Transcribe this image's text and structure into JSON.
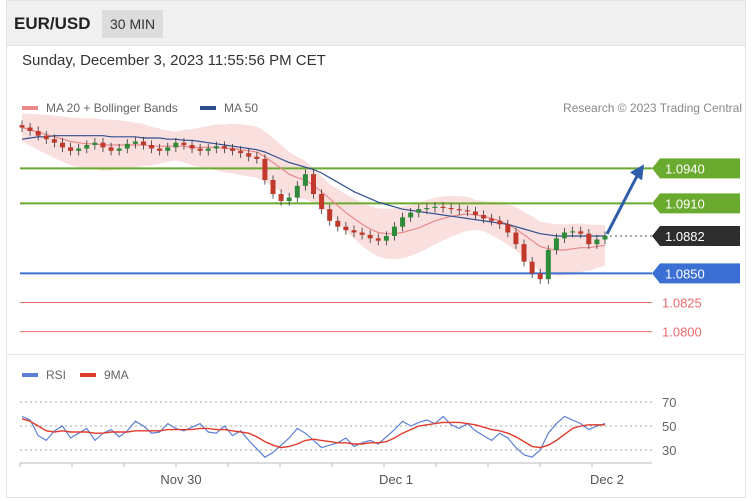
{
  "header": {
    "pair": "EUR/USD",
    "timeframe": "30 MIN"
  },
  "timestamp": "Sunday, December 3, 2023 11:55:56 PM CET",
  "legend": [
    {
      "label": "MA 20 + Bollinger Bands",
      "color": "#e88a8a"
    },
    {
      "label": "MA 50",
      "color": "#2f4f8f"
    }
  ],
  "credit": "Research © 2023 Trading Central",
  "rsi_legend": [
    {
      "label": "RSI",
      "color": "#5b7fd6"
    },
    {
      "label": "9MA",
      "color": "#e03c2c"
    }
  ],
  "colors": {
    "resistance": "#6aaa2e",
    "support": "#3b6fd4",
    "support_red": "#e86b6b",
    "price_tag": "#2d2d2d",
    "arrow": "#2f5fa8"
  },
  "chart_data": [
    {
      "type": "line",
      "title": "",
      "ylim": [
        1.078,
        1.099
      ],
      "x_ticks": [
        "Nov 30",
        "Dec 1",
        "Dec 2"
      ],
      "current_price": 1.0882,
      "levels": [
        {
          "value": 1.094,
          "label": "1.0940",
          "kind": "resistance"
        },
        {
          "value": 1.091,
          "label": "1.0910",
          "kind": "resistance"
        },
        {
          "value": 1.085,
          "label": "1.0850",
          "kind": "support"
        },
        {
          "value": 1.0825,
          "label": "1.0825",
          "kind": "support_red"
        },
        {
          "value": 1.08,
          "label": "1.0800",
          "kind": "support_red"
        }
      ],
      "series": [
        {
          "name": "Price",
          "values": [
            1.0975,
            1.0972,
            1.0968,
            1.0965,
            1.0962,
            1.0958,
            1.0955,
            1.0957,
            1.096,
            1.0962,
            1.0958,
            1.0955,
            1.0957,
            1.0961,
            1.0963,
            1.096,
            1.0957,
            1.0955,
            1.0958,
            1.0962,
            1.096,
            1.0957,
            1.0955,
            1.0957,
            1.0959,
            1.0957,
            1.0955,
            1.0953,
            1.095,
            1.0948,
            1.093,
            1.0918,
            1.0912,
            1.0915,
            1.0925,
            1.0935,
            1.0918,
            1.0905,
            1.0895,
            1.089,
            1.0887,
            1.0885,
            1.0883,
            1.088,
            1.0878,
            1.0882,
            1.089,
            1.0898,
            1.0902,
            1.0905,
            1.0906,
            1.0907,
            1.0906,
            1.0905,
            1.0904,
            1.0903,
            1.09,
            1.0897,
            1.0895,
            1.0892,
            1.0885,
            1.0875,
            1.086,
            1.085,
            1.0845,
            1.087,
            1.088,
            1.0885,
            1.0886,
            1.0884,
            1.0875,
            1.0879,
            1.0882
          ]
        },
        {
          "name": "MA 20",
          "values": [
            1.0975,
            1.0973,
            1.0971,
            1.0969,
            1.0967,
            1.0965,
            1.0963,
            1.0962,
            1.0961,
            1.0961,
            1.096,
            1.096,
            1.096,
            1.096,
            1.096,
            1.096,
            1.0959,
            1.0959,
            1.0959,
            1.0959,
            1.0959,
            1.0958,
            1.0958,
            1.0958,
            1.0958,
            1.0957,
            1.0957,
            1.0956,
            1.0955,
            1.0954,
            1.095,
            1.0945,
            1.094,
            1.0935,
            1.0932,
            1.093,
            1.0925,
            1.092,
            1.0914,
            1.0908,
            1.0902,
            1.0897,
            1.0892,
            1.0888,
            1.0885,
            1.0884,
            1.0884,
            1.0885,
            1.0887,
            1.0889,
            1.0892,
            1.0895,
            1.0897,
            1.0899,
            1.09,
            1.0901,
            1.09,
            1.0899,
            1.0897,
            1.0895,
            1.0892,
            1.0888,
            1.0883,
            1.0878,
            1.0873,
            1.0871,
            1.087,
            1.087,
            1.0871,
            1.0872,
            1.0872,
            1.0873,
            1.0874
          ]
        },
        {
          "name": "MA 50",
          "values": [
            1.0965,
            1.0966,
            1.0967,
            1.0967,
            1.0968,
            1.0968,
            1.0968,
            1.0968,
            1.0968,
            1.0968,
            1.0968,
            1.0967,
            1.0967,
            1.0967,
            1.0967,
            1.0966,
            1.0966,
            1.0966,
            1.0965,
            1.0965,
            1.0964,
            1.0964,
            1.0963,
            1.0962,
            1.0961,
            1.096,
            1.0959,
            1.0958,
            1.0957,
            1.0956,
            1.0954,
            1.0951,
            1.0948,
            1.0945,
            1.0943,
            1.0941,
            1.0939,
            1.0936,
            1.0932,
            1.0928,
            1.0924,
            1.092,
            1.0917,
            1.0914,
            1.0911,
            1.0909,
            1.0907,
            1.0905,
            1.0904,
            1.0903,
            1.0902,
            1.0901,
            1.09,
            1.0899,
            1.0898,
            1.0897,
            1.0896,
            1.0895,
            1.0894,
            1.0893,
            1.0892,
            1.089,
            1.0888,
            1.0886,
            1.0884,
            1.0883,
            1.0882,
            1.0882,
            1.0882,
            1.0882,
            1.0882,
            1.0882,
            1.0882
          ]
        }
      ]
    },
    {
      "type": "line",
      "title": "",
      "ylim": [
        20,
        80
      ],
      "y_ticks": [
        70,
        50,
        30
      ],
      "series": [
        {
          "name": "RSI",
          "values": [
            58,
            55,
            42,
            38,
            46,
            50,
            40,
            44,
            48,
            38,
            44,
            47,
            41,
            46,
            54,
            50,
            44,
            45,
            52,
            48,
            46,
            49,
            52,
            45,
            44,
            50,
            42,
            46,
            38,
            31,
            24,
            28,
            34,
            40,
            48,
            44,
            38,
            32,
            34,
            36,
            40,
            33,
            36,
            38,
            35,
            41,
            47,
            54,
            50,
            53,
            55,
            52,
            58,
            51,
            48,
            52,
            46,
            42,
            38,
            44,
            40,
            32,
            26,
            24,
            30,
            44,
            52,
            58,
            55,
            52,
            47,
            50,
            52
          ]
        },
        {
          "name": "9MA",
          "values": [
            56,
            54,
            50,
            46,
            45,
            46,
            45,
            45,
            45,
            44,
            44,
            45,
            45,
            45,
            46,
            46,
            46,
            46,
            47,
            47,
            47,
            47,
            48,
            48,
            47,
            47,
            46,
            45,
            44,
            41,
            37,
            34,
            32,
            33,
            35,
            38,
            39,
            38,
            37,
            36,
            36,
            35,
            35,
            36,
            36,
            37,
            40,
            44,
            47,
            50,
            51,
            52,
            53,
            53,
            53,
            52,
            51,
            49,
            47,
            46,
            44,
            41,
            37,
            33,
            32,
            34,
            38,
            43,
            48,
            50,
            51,
            51,
            51
          ]
        }
      ]
    }
  ]
}
